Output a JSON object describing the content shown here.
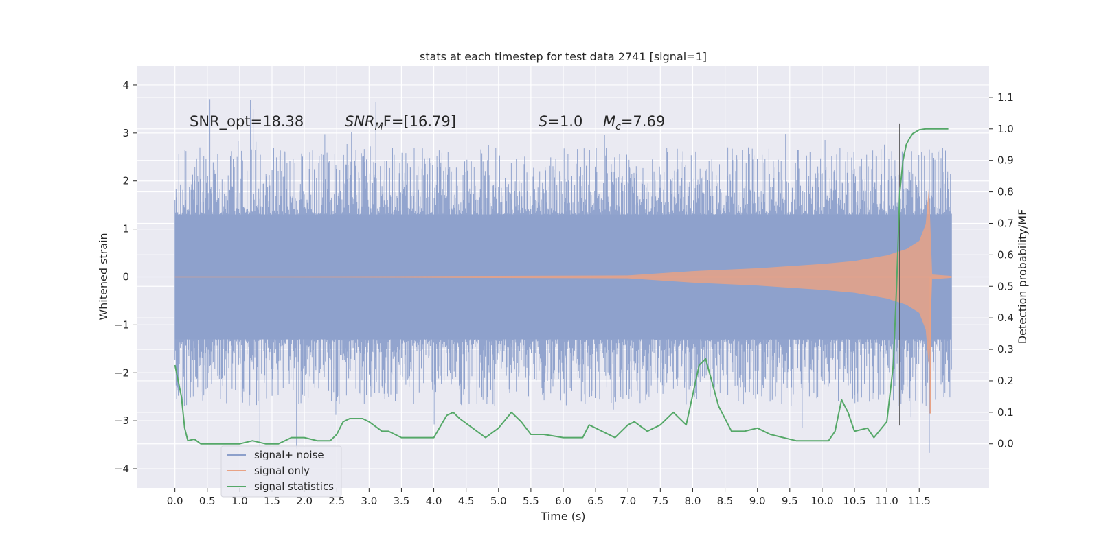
{
  "chart_data": {
    "type": "line",
    "title": "stats at each timestep for test data 2741 [signal=1]",
    "xlabel": "Time (s)",
    "ylabel_left": "Whitened strain",
    "ylabel_right": "Detection probability/MF",
    "xlim": [
      -0.58,
      12.58
    ],
    "ylim_left": [
      -4.4,
      4.4
    ],
    "ylim_right": [
      -0.14,
      1.2
    ],
    "x_ticks": [
      0.0,
      0.5,
      1.0,
      1.5,
      2.0,
      2.5,
      3.0,
      3.5,
      4.0,
      4.5,
      5.0,
      5.5,
      6.0,
      6.5,
      7.0,
      7.5,
      8.0,
      8.5,
      9.0,
      9.5,
      10.0,
      10.5,
      11.0,
      11.5
    ],
    "x_tick_labels": [
      "0.0",
      "0.5",
      "1.0",
      "1.5",
      "2.0",
      "2.5",
      "3.0",
      "3.5",
      "4.0",
      "4.5",
      "5.0",
      "5.5",
      "6.0",
      "6.5",
      "7.0",
      "7.5",
      "8.0",
      "8.5",
      "9.0",
      "9.5",
      "10.0",
      "10.5",
      "11.0",
      "11.5"
    ],
    "y_left_ticks": [
      -4,
      -3,
      -2,
      -1,
      0,
      1,
      2,
      3,
      4
    ],
    "y_left_tick_labels": [
      "−4",
      "−3",
      "−2",
      "−1",
      "0",
      "1",
      "2",
      "3",
      "4"
    ],
    "y_right_ticks": [
      0.0,
      0.1,
      0.2,
      0.3,
      0.4,
      0.5,
      0.6,
      0.7,
      0.8,
      0.9,
      1.0,
      1.1
    ],
    "y_right_tick_labels": [
      "0.0",
      "0.1",
      "0.2",
      "0.3",
      "0.4",
      "0.5",
      "0.6",
      "0.7",
      "0.8",
      "0.9",
      "1.0",
      "1.1"
    ],
    "grid": true,
    "legend_position": "bottom-left",
    "annotations": {
      "snr_opt": "SNR_opt=18.38",
      "snr_mf_sym": "SNR",
      "snr_mf_sub": "M",
      "snr_mf_rest": "F=[16.79]",
      "s_sym": "S",
      "s_rest": "=1.0",
      "mc_sym": "M",
      "mc_sub": "c",
      "mc_rest": "=7.69"
    },
    "noise_envelope": {
      "x_start": 0.0,
      "x_end": 12.0,
      "typical_amplitude": 1.3,
      "range": [
        -4.0,
        4.1
      ]
    },
    "signal_only": {
      "x_start": 0.0,
      "x_end": 12.0,
      "envelope_x": [
        0.0,
        7.0,
        8.0,
        9.0,
        10.0,
        10.5,
        11.0,
        11.3,
        11.5,
        11.6,
        11.65,
        11.7,
        12.0
      ],
      "envelope_amplitude": [
        0.0,
        0.03,
        0.12,
        0.18,
        0.27,
        0.33,
        0.45,
        0.58,
        0.75,
        1.1,
        1.9,
        0.05,
        0.02
      ],
      "min_value": -2.85
    },
    "vertical_marker": {
      "x": 11.2,
      "y_from": -3.1,
      "y_to": 3.2
    },
    "series": [
      {
        "name": "signal+ noise",
        "color": "#8da0cb"
      },
      {
        "name": "signal only",
        "color": "#e8a285"
      },
      {
        "name": "signal statistics",
        "color": "#55a868",
        "axis": "right",
        "x": [
          0.0,
          0.1,
          0.15,
          0.2,
          0.3,
          0.4,
          0.5,
          0.6,
          0.8,
          1.0,
          1.2,
          1.4,
          1.6,
          1.8,
          2.0,
          2.2,
          2.4,
          2.5,
          2.6,
          2.7,
          2.9,
          3.0,
          3.2,
          3.3,
          3.5,
          3.7,
          4.0,
          4.2,
          4.3,
          4.4,
          4.6,
          4.8,
          5.0,
          5.2,
          5.35,
          5.5,
          5.7,
          6.0,
          6.3,
          6.4,
          6.6,
          6.8,
          7.0,
          7.1,
          7.3,
          7.5,
          7.7,
          7.9,
          8.1,
          8.2,
          8.4,
          8.6,
          8.8,
          9.0,
          9.2,
          9.4,
          9.6,
          9.9,
          10.1,
          10.2,
          10.3,
          10.4,
          10.5,
          10.7,
          10.8,
          11.0,
          11.1,
          11.15,
          11.2,
          11.25,
          11.3,
          11.35,
          11.4,
          11.5,
          11.6,
          11.8,
          11.95
        ],
        "values": [
          0.25,
          0.15,
          0.05,
          0.01,
          0.015,
          0.0,
          0.0,
          0.0,
          0.0,
          0.0,
          0.01,
          0.0,
          0.0,
          0.02,
          0.02,
          0.01,
          0.01,
          0.03,
          0.07,
          0.08,
          0.08,
          0.07,
          0.04,
          0.04,
          0.02,
          0.02,
          0.02,
          0.09,
          0.1,
          0.08,
          0.05,
          0.02,
          0.05,
          0.1,
          0.07,
          0.03,
          0.03,
          0.02,
          0.02,
          0.06,
          0.04,
          0.02,
          0.06,
          0.07,
          0.04,
          0.06,
          0.1,
          0.06,
          0.25,
          0.27,
          0.12,
          0.04,
          0.04,
          0.05,
          0.03,
          0.02,
          0.01,
          0.01,
          0.01,
          0.04,
          0.14,
          0.1,
          0.04,
          0.05,
          0.02,
          0.07,
          0.25,
          0.5,
          0.8,
          0.9,
          0.95,
          0.97,
          0.985,
          0.997,
          1.0,
          1.0,
          1.0
        ]
      }
    ]
  }
}
